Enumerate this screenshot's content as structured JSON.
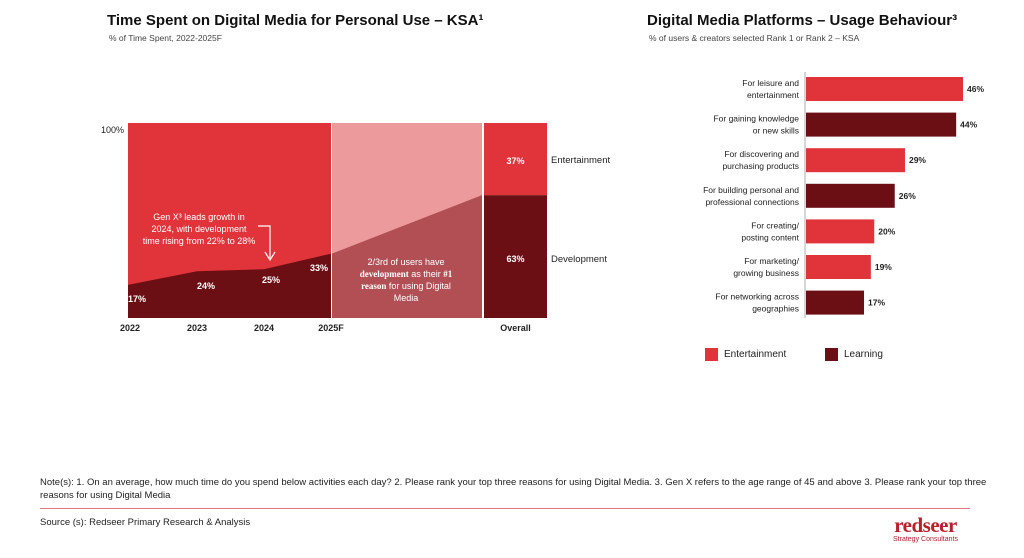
{
  "left_chart": {
    "title": "Time Spent on Digital Media for Personal Use – KSA¹",
    "subtitle": "% of Time Spent, 2022-2025F",
    "y_top_label": "100%",
    "annotation_growth": [
      "Gen X³ leads growth in",
      "2024, with development",
      "time rising from 22% to 28%"
    ],
    "annotation_users": [
      "2/3rd of users have",
      "development",
      " as their ",
      "#1",
      "reason",
      " for using Digital",
      "Media"
    ],
    "overall_labels": {
      "entertainment": "Entertainment",
      "development": "Development"
    }
  },
  "right_chart": {
    "title": "Digital Media Platforms – Usage Behaviour³",
    "subtitle": "% of users & creators selected Rank 1 or Rank 2 – KSA"
  },
  "legend": {
    "entertainment": "Entertainment",
    "learning": "Learning"
  },
  "colors": {
    "entertainment": "#e0343a",
    "development": "#6b0f14",
    "forecast_light": "#ec9a9c",
    "forecast_dark": "#b14f55"
  },
  "chart_data": [
    {
      "type": "area",
      "x": [
        "2022",
        "2023",
        "2024",
        "2025F"
      ],
      "series": [
        {
          "name": "Development",
          "values": [
            17,
            24,
            25,
            33
          ],
          "labels": [
            "17%",
            "24%",
            "25%",
            "33%"
          ]
        }
      ],
      "forecast_end": 63,
      "overall": {
        "label": "Overall",
        "values": [
          63,
          37
        ],
        "labels": [
          "63%",
          "37%"
        ]
      },
      "ylim": [
        0,
        100
      ]
    },
    {
      "type": "bar",
      "categories": [
        [
          "For leisure and",
          "entertainment"
        ],
        [
          "For gaining knowledge",
          "or new skills"
        ],
        [
          "For discovering and",
          "purchasing products"
        ],
        [
          "For building personal and",
          "professional connections"
        ],
        [
          "For creating/",
          "posting content"
        ],
        [
          "For marketing/",
          "growing business"
        ],
        [
          "For networking across",
          "geographies"
        ]
      ],
      "values": [
        46,
        44,
        29,
        26,
        20,
        19,
        17
      ],
      "labels": [
        "46%",
        "44%",
        "29%",
        "26%",
        "20%",
        "19%",
        "17%"
      ],
      "kinds": [
        "entertainment",
        "learning",
        "entertainment",
        "learning",
        "entertainment",
        "entertainment",
        "learning"
      ]
    }
  ],
  "notes": "Note(s): 1. On an average, how much time do you spend below activities each day?  2. Please rank your top three reasons for using Digital Media. 3. Gen X refers to the age range of 45 and above 3. Please rank your top three reasons for using Digital Media",
  "source": "Source (s): Redseer Primary Research & Analysis",
  "logo": {
    "word": "redseer",
    "tagline": "Strategy Consultants"
  }
}
